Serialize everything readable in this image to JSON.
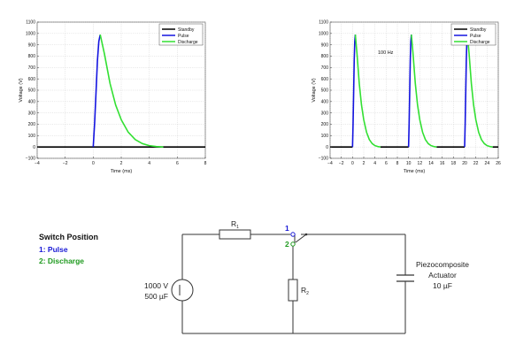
{
  "chart_data": [
    {
      "type": "line",
      "title": "",
      "xlabel": "Time (ms)",
      "ylabel": "Voltage (V)",
      "xlim": [
        -4,
        8
      ],
      "ylim": [
        -100,
        1100
      ],
      "xticks": [
        -4,
        -2,
        0,
        2,
        4,
        6,
        8
      ],
      "yticks": [
        -100,
        0,
        100,
        200,
        300,
        400,
        500,
        600,
        700,
        800,
        900,
        1000,
        1100
      ],
      "grid": true,
      "legend_position": "top-right",
      "annotation": "",
      "series": [
        {
          "name": "Standby",
          "color": "#000000",
          "x": [
            -4,
            0,
            5,
            8
          ],
          "y": [
            0,
            0,
            0,
            0
          ]
        },
        {
          "name": "Pulse",
          "color": "#1414e0",
          "x": [
            0,
            0.1,
            0.2,
            0.3,
            0.4,
            0.5
          ],
          "y": [
            0,
            210,
            480,
            760,
            930,
            990
          ]
        },
        {
          "name": "Discharge",
          "color": "#33e033",
          "x": [
            0.5,
            0.8,
            1.2,
            1.6,
            2.0,
            2.5,
            3.0,
            3.5,
            4.0,
            4.5,
            5.0
          ],
          "y": [
            990,
            820,
            560,
            370,
            240,
            130,
            65,
            30,
            12,
            4,
            0
          ]
        }
      ]
    },
    {
      "type": "line",
      "title": "",
      "xlabel": "Time (ms)",
      "ylabel": "Voltage (V)",
      "xlim": [
        -4,
        26
      ],
      "ylim": [
        -100,
        1100
      ],
      "xticks": [
        -4,
        -2,
        0,
        2,
        4,
        6,
        8,
        10,
        12,
        14,
        16,
        18,
        20,
        22,
        24,
        26
      ],
      "yticks": [
        -100,
        0,
        100,
        200,
        300,
        400,
        500,
        600,
        700,
        800,
        900,
        1000,
        1100
      ],
      "grid": true,
      "legend_position": "top-right",
      "annotation": "100 Hz",
      "series": [
        {
          "name": "Standby",
          "color": "#000000",
          "x": [
            -4,
            0,
            null,
            5,
            10,
            null,
            15,
            20,
            null,
            25,
            26
          ],
          "y": [
            0,
            0,
            null,
            0,
            0,
            null,
            0,
            0,
            null,
            0,
            0
          ]
        },
        {
          "name": "Pulse",
          "color": "#1414e0",
          "x": [
            0,
            0.1,
            0.2,
            0.3,
            0.4,
            0.5,
            null,
            10,
            10.1,
            10.2,
            10.3,
            10.4,
            10.5,
            null,
            20,
            20.1,
            20.2,
            20.3,
            20.4,
            20.5
          ],
          "y": [
            0,
            210,
            480,
            760,
            930,
            990,
            null,
            0,
            210,
            480,
            760,
            930,
            990,
            null,
            0,
            210,
            480,
            760,
            930,
            990
          ]
        },
        {
          "name": "Discharge",
          "color": "#33e033",
          "x": [
            0.5,
            0.8,
            1.2,
            1.6,
            2.0,
            2.5,
            3.0,
            3.5,
            4.0,
            4.5,
            5.0,
            null,
            10.5,
            10.8,
            11.2,
            11.6,
            12.0,
            12.5,
            13.0,
            13.5,
            14.0,
            14.5,
            15.0,
            null,
            20.5,
            20.8,
            21.2,
            21.6,
            22.0,
            22.5,
            23.0,
            23.5,
            24.0,
            24.5,
            25.0
          ],
          "y": [
            990,
            820,
            560,
            370,
            240,
            130,
            65,
            30,
            12,
            4,
            0,
            null,
            990,
            820,
            560,
            370,
            240,
            130,
            65,
            30,
            12,
            4,
            0,
            null,
            990,
            820,
            560,
            370,
            240,
            130,
            65,
            30,
            12,
            4,
            0
          ]
        }
      ]
    }
  ],
  "switch_legend": {
    "title": "Switch Position",
    "pos1": "1: Pulse",
    "pos2": "2: Discharge"
  },
  "circuit": {
    "r1_label": "R",
    "r1_sub": "1",
    "r2_label": "R",
    "r2_sub": "2",
    "node1": "1",
    "node2": "2",
    "source_voltage": "1000 V",
    "source_cap": "500 µF",
    "actuator_line1": "Piezocomposite",
    "actuator_line2": "Actuator",
    "actuator_line3": "10 µF",
    "colors": {
      "pulse": "#1a1ad6",
      "discharge": "#1f9a1f"
    }
  }
}
